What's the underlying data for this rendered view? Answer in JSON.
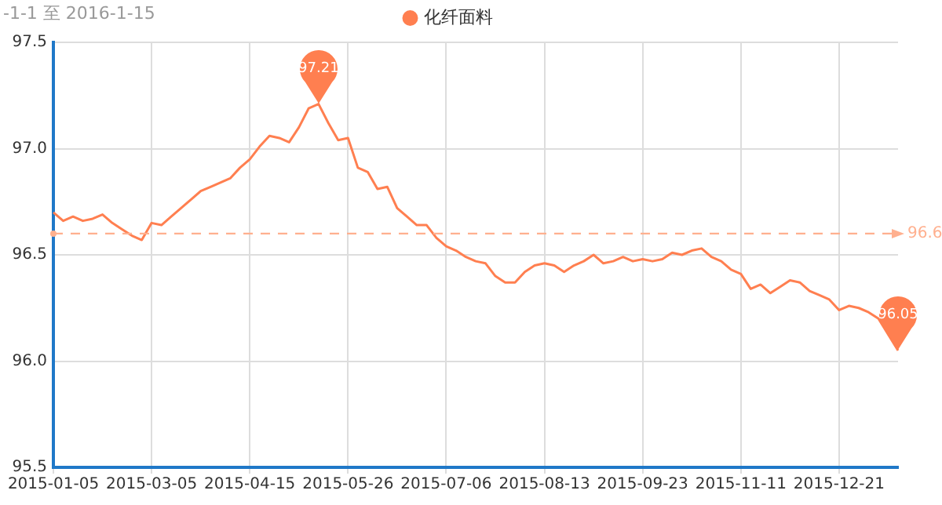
{
  "chart_data": {
    "type": "line",
    "subtitle": "-1-1 至 2016-1-15",
    "categories": [
      "2015-01-05",
      null,
      null,
      null,
      null,
      null,
      null,
      null,
      null,
      null,
      "2015-03-05",
      null,
      null,
      null,
      null,
      null,
      null,
      null,
      null,
      null,
      "2015-04-15",
      null,
      null,
      null,
      null,
      null,
      null,
      null,
      null,
      null,
      "2015-05-26",
      null,
      null,
      null,
      null,
      null,
      null,
      null,
      null,
      null,
      "2015-07-06",
      null,
      null,
      null,
      null,
      null,
      null,
      null,
      null,
      null,
      "2015-08-13",
      null,
      null,
      null,
      null,
      null,
      null,
      null,
      null,
      null,
      "2015-09-23",
      null,
      null,
      null,
      null,
      null,
      null,
      null,
      null,
      null,
      "2015-11-11",
      null,
      null,
      null,
      null,
      null,
      null,
      null,
      null,
      null,
      "2015-12-21",
      null,
      null,
      null,
      null,
      null,
      null
    ],
    "series": [
      {
        "name": "化纤面料",
        "color": "#ff7f50",
        "values": [
          96.7,
          96.66,
          96.68,
          96.66,
          96.67,
          96.69,
          96.65,
          96.62,
          96.59,
          96.57,
          96.65,
          96.64,
          96.68,
          96.72,
          96.76,
          96.8,
          96.82,
          96.84,
          96.86,
          96.91,
          96.95,
          97.01,
          97.06,
          97.05,
          97.03,
          97.1,
          97.19,
          97.21,
          97.12,
          97.04,
          97.05,
          96.91,
          96.89,
          96.81,
          96.82,
          96.72,
          96.68,
          96.64,
          96.64,
          96.58,
          96.54,
          96.52,
          96.49,
          96.47,
          96.46,
          96.4,
          96.37,
          96.37,
          96.42,
          96.45,
          96.46,
          96.45,
          96.42,
          96.45,
          96.47,
          96.5,
          96.46,
          96.47,
          96.49,
          96.47,
          96.48,
          96.47,
          96.48,
          96.51,
          96.5,
          96.52,
          96.53,
          96.49,
          96.47,
          96.43,
          96.41,
          96.34,
          96.36,
          96.32,
          96.35,
          96.38,
          96.37,
          96.33,
          96.31,
          96.29,
          96.24,
          96.26,
          96.25,
          96.23,
          96.2,
          null,
          96.05
        ]
      }
    ],
    "ylim": [
      95.5,
      97.5
    ],
    "yticks": [
      95.5,
      {
        "value": 96,
        "label": "96.0"
      },
      96.5,
      {
        "value": 97,
        "label": "97.0"
      },
      97.5
    ],
    "grid": true,
    "legend": "top",
    "marker": "none",
    "line_style": "solid",
    "ref_lines": [
      {
        "axis": "y",
        "value": 96.6,
        "label": "96.6",
        "color": "#ffb08f",
        "line_style": "dashed"
      }
    ],
    "annotations": [
      {
        "text": "97.21",
        "y": 97.21
      },
      {
        "text": "96.05",
        "y": 96.05
      }
    ]
  }
}
